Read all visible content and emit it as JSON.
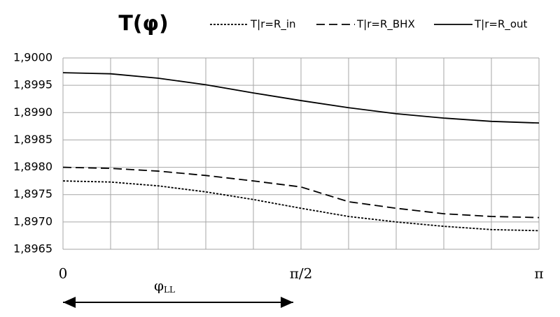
{
  "chart_data": {
    "type": "line",
    "title": "T(φ)",
    "x": [
      0,
      0.3142,
      0.6283,
      0.9425,
      1.2566,
      1.5708,
      1.885,
      2.1991,
      2.5133,
      2.8274,
      3.1416
    ],
    "series": [
      {
        "name": "T|r=R_in",
        "color": "#000000",
        "dash": "3,2",
        "values": [
          1.89775,
          1.89773,
          1.89766,
          1.89755,
          1.89741,
          1.89725,
          1.8971,
          1.897,
          1.89692,
          1.89686,
          1.89684
        ]
      },
      {
        "name": "T|r=R_BHX",
        "color": "#000000",
        "dash": "12,6",
        "values": [
          1.898,
          1.89798,
          1.89793,
          1.89785,
          1.89775,
          1.89764,
          1.89737,
          1.89725,
          1.89715,
          1.8971,
          1.89708
        ]
      },
      {
        "name": "T|r=R_out",
        "color": "#000000",
        "dash": "none",
        "values": [
          1.89973,
          1.89971,
          1.89963,
          1.89951,
          1.89936,
          1.89922,
          1.89909,
          1.89898,
          1.8989,
          1.89884,
          1.89881
        ]
      }
    ],
    "xlim": [
      0,
      3.1416
    ],
    "xticks": [
      0,
      {
        "value": 1.5708,
        "label": "π/2"
      },
      {
        "value": 3.1416,
        "label": "π"
      }
    ],
    "x_grid_divisions": 10,
    "ylim": [
      1.8965,
      1.9
    ],
    "yticks": [
      {
        "value": 1.8965,
        "label": "1,8965"
      },
      {
        "value": 1.897,
        "label": "1,8970"
      },
      {
        "value": 1.8975,
        "label": "1,8975"
      },
      {
        "value": 1.898,
        "label": "1,8980"
      },
      {
        "value": 1.8985,
        "label": "1,8985"
      },
      {
        "value": 1.899,
        "label": "1,8990"
      },
      {
        "value": 1.8995,
        "label": "1,8995"
      },
      {
        "value": 1.9,
        "label": "1,9000"
      }
    ],
    "grid": true,
    "legend": "top-right",
    "annotation": "φ",
    "annotation_sub": "LL",
    "annotation_span": [
      0,
      1.52
    ]
  }
}
